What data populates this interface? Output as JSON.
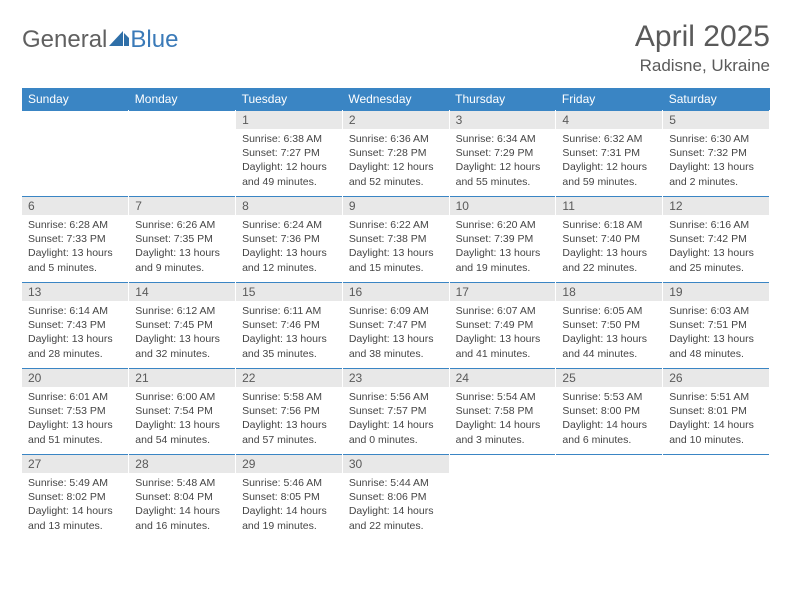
{
  "logo": {
    "text1": "General",
    "text2": "Blue",
    "icon_color": "#2f6fa8"
  },
  "header": {
    "month_year": "April 2025",
    "location": "Radisne, Ukraine"
  },
  "colors": {
    "header_bg": "#3a85c4",
    "header_text": "#ffffff",
    "daynum_bg": "#e8e8e8",
    "rule": "#3a85c4",
    "body_text": "#454545"
  },
  "weekdays": [
    "Sunday",
    "Monday",
    "Tuesday",
    "Wednesday",
    "Thursday",
    "Friday",
    "Saturday"
  ],
  "weeks": [
    [
      null,
      null,
      {
        "n": "1",
        "sunrise": "6:38 AM",
        "sunset": "7:27 PM",
        "daylight": "12 hours and 49 minutes."
      },
      {
        "n": "2",
        "sunrise": "6:36 AM",
        "sunset": "7:28 PM",
        "daylight": "12 hours and 52 minutes."
      },
      {
        "n": "3",
        "sunrise": "6:34 AM",
        "sunset": "7:29 PM",
        "daylight": "12 hours and 55 minutes."
      },
      {
        "n": "4",
        "sunrise": "6:32 AM",
        "sunset": "7:31 PM",
        "daylight": "12 hours and 59 minutes."
      },
      {
        "n": "5",
        "sunrise": "6:30 AM",
        "sunset": "7:32 PM",
        "daylight": "13 hours and 2 minutes."
      }
    ],
    [
      {
        "n": "6",
        "sunrise": "6:28 AM",
        "sunset": "7:33 PM",
        "daylight": "13 hours and 5 minutes."
      },
      {
        "n": "7",
        "sunrise": "6:26 AM",
        "sunset": "7:35 PM",
        "daylight": "13 hours and 9 minutes."
      },
      {
        "n": "8",
        "sunrise": "6:24 AM",
        "sunset": "7:36 PM",
        "daylight": "13 hours and 12 minutes."
      },
      {
        "n": "9",
        "sunrise": "6:22 AM",
        "sunset": "7:38 PM",
        "daylight": "13 hours and 15 minutes."
      },
      {
        "n": "10",
        "sunrise": "6:20 AM",
        "sunset": "7:39 PM",
        "daylight": "13 hours and 19 minutes."
      },
      {
        "n": "11",
        "sunrise": "6:18 AM",
        "sunset": "7:40 PM",
        "daylight": "13 hours and 22 minutes."
      },
      {
        "n": "12",
        "sunrise": "6:16 AM",
        "sunset": "7:42 PM",
        "daylight": "13 hours and 25 minutes."
      }
    ],
    [
      {
        "n": "13",
        "sunrise": "6:14 AM",
        "sunset": "7:43 PM",
        "daylight": "13 hours and 28 minutes."
      },
      {
        "n": "14",
        "sunrise": "6:12 AM",
        "sunset": "7:45 PM",
        "daylight": "13 hours and 32 minutes."
      },
      {
        "n": "15",
        "sunrise": "6:11 AM",
        "sunset": "7:46 PM",
        "daylight": "13 hours and 35 minutes."
      },
      {
        "n": "16",
        "sunrise": "6:09 AM",
        "sunset": "7:47 PM",
        "daylight": "13 hours and 38 minutes."
      },
      {
        "n": "17",
        "sunrise": "6:07 AM",
        "sunset": "7:49 PM",
        "daylight": "13 hours and 41 minutes."
      },
      {
        "n": "18",
        "sunrise": "6:05 AM",
        "sunset": "7:50 PM",
        "daylight": "13 hours and 44 minutes."
      },
      {
        "n": "19",
        "sunrise": "6:03 AM",
        "sunset": "7:51 PM",
        "daylight": "13 hours and 48 minutes."
      }
    ],
    [
      {
        "n": "20",
        "sunrise": "6:01 AM",
        "sunset": "7:53 PM",
        "daylight": "13 hours and 51 minutes."
      },
      {
        "n": "21",
        "sunrise": "6:00 AM",
        "sunset": "7:54 PM",
        "daylight": "13 hours and 54 minutes."
      },
      {
        "n": "22",
        "sunrise": "5:58 AM",
        "sunset": "7:56 PM",
        "daylight": "13 hours and 57 minutes."
      },
      {
        "n": "23",
        "sunrise": "5:56 AM",
        "sunset": "7:57 PM",
        "daylight": "14 hours and 0 minutes."
      },
      {
        "n": "24",
        "sunrise": "5:54 AM",
        "sunset": "7:58 PM",
        "daylight": "14 hours and 3 minutes."
      },
      {
        "n": "25",
        "sunrise": "5:53 AM",
        "sunset": "8:00 PM",
        "daylight": "14 hours and 6 minutes."
      },
      {
        "n": "26",
        "sunrise": "5:51 AM",
        "sunset": "8:01 PM",
        "daylight": "14 hours and 10 minutes."
      }
    ],
    [
      {
        "n": "27",
        "sunrise": "5:49 AM",
        "sunset": "8:02 PM",
        "daylight": "14 hours and 13 minutes."
      },
      {
        "n": "28",
        "sunrise": "5:48 AM",
        "sunset": "8:04 PM",
        "daylight": "14 hours and 16 minutes."
      },
      {
        "n": "29",
        "sunrise": "5:46 AM",
        "sunset": "8:05 PM",
        "daylight": "14 hours and 19 minutes."
      },
      {
        "n": "30",
        "sunrise": "5:44 AM",
        "sunset": "8:06 PM",
        "daylight": "14 hours and 22 minutes."
      },
      null,
      null,
      null
    ]
  ],
  "labels": {
    "sunrise": "Sunrise:",
    "sunset": "Sunset:",
    "daylight": "Daylight:"
  }
}
